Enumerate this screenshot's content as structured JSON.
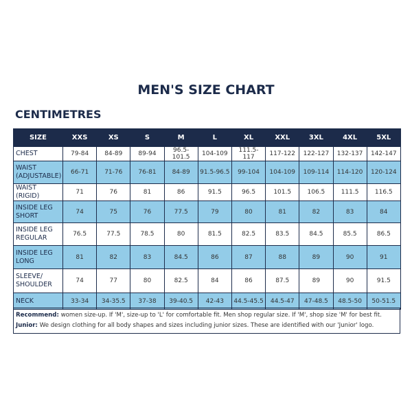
{
  "title": "MEN'S SIZE CHART",
  "subtitle": "CENTIMETRES",
  "table": {
    "header": [
      "SIZE",
      "XXS",
      "XS",
      "S",
      "M",
      "L",
      "XL",
      "XXL",
      "3XL",
      "4XL",
      "5XL"
    ],
    "rows": [
      [
        "CHEST",
        "79-84",
        "84-89",
        "89-94",
        "96.5-101.5",
        "104-109",
        "111.5-117",
        "117-122",
        "122-127",
        "132-137",
        "142-147"
      ],
      [
        "WAIST (ADJUSTABLE)",
        "66-71",
        "71-76",
        "76-81",
        "84-89",
        "91.5-96.5",
        "99-104",
        "104-109",
        "109-114",
        "114-120",
        "120-124"
      ],
      [
        "WAIST (RIGID)",
        "71",
        "76",
        "81",
        "86",
        "91.5",
        "96.5",
        "101.5",
        "106.5",
        "111.5",
        "116.5"
      ],
      [
        "INSIDE LEG SHORT",
        "74",
        "75",
        "76",
        "77.5",
        "79",
        "80",
        "81",
        "82",
        "83",
        "84"
      ],
      [
        "INSIDE LEG REGULAR",
        "76.5",
        "77.5",
        "78.5",
        "80",
        "81.5",
        "82.5",
        "83.5",
        "84.5",
        "85.5",
        "86.5"
      ],
      [
        "INSIDE LEG LONG",
        "81",
        "82",
        "83",
        "84.5",
        "86",
        "87",
        "88",
        "89",
        "90",
        "91"
      ],
      [
        "SLEEVE/ SHOULDER",
        "74",
        "77",
        "80",
        "82.5",
        "84",
        "86",
        "87.5",
        "89",
        "90",
        "91.5"
      ],
      [
        "NECK",
        "33-34",
        "34-35.5",
        "37-38",
        "39-40.5",
        "42-43",
        "44.5-45.5",
        "44.5-47",
        "47-48.5",
        "48.5-50",
        "50-51.5"
      ]
    ]
  },
  "notes": [
    {
      "label": "Recommend:",
      "text": "women size-up. If 'M', size-up to 'L' for comfortable fit. Men shop regular size. If 'M', shop size 'M' for best fit."
    },
    {
      "label": "Junior:",
      "text": "We design clothing for all body shapes and sizes including junior sizes. These are identified with our 'Junior' logo."
    }
  ]
}
